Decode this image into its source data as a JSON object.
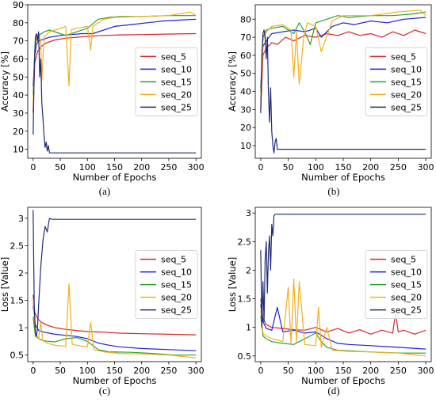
{
  "chart_data": [
    {
      "type": "line",
      "caption": "(a)",
      "xlabel": "Number of Epochs",
      "ylabel": "Accuracy [%]",
      "xlim": [
        -10,
        310
      ],
      "ylim": [
        5,
        90
      ],
      "xticks": [
        0,
        50,
        100,
        150,
        200,
        250,
        300
      ],
      "yticks": [
        10,
        20,
        30,
        40,
        50,
        60,
        70,
        80,
        90
      ],
      "legend": "center-right",
      "series": [
        {
          "name": "seq_5",
          "color": "#d62728",
          "x": [
            0,
            3,
            8,
            15,
            25,
            40,
            60,
            80,
            100,
            130,
            160,
            200,
            250,
            300
          ],
          "y": [
            30,
            58,
            64,
            67,
            69,
            70.5,
            71.5,
            72,
            72.5,
            73,
            73.3,
            73.5,
            73.8,
            74
          ]
        },
        {
          "name": "seq_10",
          "color": "#1f1fd6",
          "x": [
            0,
            3,
            6,
            10,
            20,
            30,
            50,
            70,
            90,
            110,
            130,
            150,
            180,
            210,
            240,
            270,
            300
          ],
          "y": [
            45,
            62,
            68,
            70,
            71,
            72,
            73,
            73.5,
            74,
            74,
            76,
            78,
            79,
            80,
            81,
            81.5,
            82
          ]
        },
        {
          "name": "seq_15",
          "color": "#2ca02c",
          "x": [
            0,
            3,
            6,
            10,
            20,
            30,
            50,
            60,
            80,
            100,
            120,
            140,
            160,
            200,
            250,
            300
          ],
          "y": [
            40,
            65,
            71,
            73,
            75,
            76,
            74,
            73,
            75,
            77,
            82,
            83,
            83.5,
            83.5,
            84,
            84
          ]
        },
        {
          "name": "seq_20",
          "color": "#f2b01e",
          "x": [
            0,
            3,
            6,
            10,
            14,
            16,
            20,
            30,
            50,
            60,
            66,
            70,
            80,
            100,
            106,
            110,
            130,
            150,
            200,
            250,
            290,
            300
          ],
          "y": [
            35,
            65,
            72,
            74,
            70,
            48,
            72,
            75,
            77,
            78,
            45,
            76,
            77,
            78,
            65,
            78,
            82,
            83,
            83.5,
            84,
            86,
            84
          ]
        },
        {
          "name": "seq_25",
          "color": "#1f2b7a",
          "x": [
            0,
            2,
            4,
            6,
            8,
            10,
            12,
            14,
            16,
            18,
            20,
            22,
            24,
            26,
            28,
            30,
            35,
            60,
            100,
            200,
            300
          ],
          "y": [
            18,
            55,
            72,
            74,
            70,
            75,
            50,
            60,
            35,
            27,
            18,
            11,
            14,
            9,
            12,
            8,
            8,
            8,
            8,
            8,
            8
          ]
        }
      ]
    },
    {
      "type": "line",
      "caption": "(b)",
      "xlabel": "Number of Epochs",
      "ylabel": "Accuracy [%]",
      "xlim": [
        -10,
        310
      ],
      "ylim": [
        3,
        88
      ],
      "xticks": [
        0,
        50,
        100,
        150,
        200,
        250,
        300
      ],
      "yticks": [
        10,
        20,
        30,
        40,
        50,
        60,
        70,
        80
      ],
      "legend": "center-right",
      "series": [
        {
          "name": "seq_5",
          "color": "#d62728",
          "x": [
            0,
            4,
            10,
            20,
            30,
            45,
            60,
            80,
            100,
            120,
            140,
            160,
            180,
            200,
            220,
            240,
            260,
            280,
            300
          ],
          "y": [
            30,
            60,
            64,
            67,
            66,
            70,
            68,
            71,
            70,
            72,
            71,
            73,
            71,
            72,
            70,
            73,
            71,
            74,
            72
          ]
        },
        {
          "name": "seq_10",
          "color": "#1f1fd6",
          "x": [
            0,
            4,
            10,
            20,
            40,
            60,
            80,
            100,
            110,
            130,
            150,
            170,
            200,
            230,
            260,
            300
          ],
          "y": [
            42,
            65,
            68,
            72,
            73,
            74,
            73,
            75,
            70,
            76,
            78,
            77,
            79,
            78,
            80,
            81
          ]
        },
        {
          "name": "seq_15",
          "color": "#2ca02c",
          "x": [
            0,
            4,
            10,
            20,
            40,
            60,
            70,
            80,
            90,
            100,
            120,
            140,
            160,
            200,
            240,
            280,
            300
          ],
          "y": [
            40,
            70,
            74,
            75,
            76,
            72,
            78,
            73,
            66,
            78,
            80,
            82,
            81,
            82,
            82,
            83,
            84
          ]
        },
        {
          "name": "seq_20",
          "color": "#f2b01e",
          "x": [
            0,
            4,
            10,
            20,
            40,
            55,
            60,
            65,
            70,
            78,
            85,
            100,
            110,
            130,
            150,
            200,
            250,
            290,
            300
          ],
          "y": [
            35,
            68,
            73,
            76,
            77,
            74,
            48,
            73,
            44,
            70,
            78,
            76,
            62,
            79,
            82,
            82,
            84,
            85,
            82
          ]
        },
        {
          "name": "seq_25",
          "color": "#1f2b7a",
          "x": [
            0,
            2,
            4,
            6,
            8,
            10,
            12,
            14,
            16,
            18,
            20,
            22,
            24,
            26,
            28,
            30,
            35,
            100,
            200,
            300
          ],
          "y": [
            28,
            60,
            72,
            74,
            70,
            58,
            70,
            40,
            23,
            42,
            18,
            10,
            6,
            12,
            14,
            8,
            8,
            8,
            8,
            8
          ]
        }
      ]
    },
    {
      "type": "line",
      "caption": "(c)",
      "xlabel": "Number of Epochs",
      "ylabel": "Loss [Value]",
      "xlim": [
        -10,
        310
      ],
      "ylim": [
        0.38,
        3.2
      ],
      "xticks": [
        0,
        50,
        100,
        150,
        200,
        250,
        300
      ],
      "yticks": [
        0.5,
        1.0,
        1.5,
        2.0,
        2.5,
        3.0
      ],
      "legend": "center-right",
      "series": [
        {
          "name": "seq_5",
          "color": "#d62728",
          "x": [
            0,
            3,
            8,
            15,
            25,
            40,
            60,
            80,
            100,
            130,
            160,
            200,
            250,
            300
          ],
          "y": [
            1.6,
            1.28,
            1.17,
            1.1,
            1.05,
            1.0,
            0.97,
            0.95,
            0.93,
            0.92,
            0.9,
            0.89,
            0.88,
            0.87
          ]
        },
        {
          "name": "seq_10",
          "color": "#1f1fd6",
          "x": [
            0,
            4,
            10,
            20,
            40,
            60,
            80,
            100,
            120,
            140,
            160,
            200,
            250,
            300
          ],
          "y": [
            1.4,
            1.05,
            0.95,
            0.92,
            0.88,
            0.86,
            0.84,
            0.8,
            0.72,
            0.68,
            0.65,
            0.62,
            0.6,
            0.58
          ]
        },
        {
          "name": "seq_15",
          "color": "#2ca02c",
          "x": [
            0,
            4,
            10,
            20,
            40,
            60,
            80,
            100,
            120,
            140,
            180,
            220,
            260,
            300
          ],
          "y": [
            1.2,
            0.85,
            0.8,
            0.76,
            0.74,
            0.8,
            0.82,
            0.75,
            0.6,
            0.56,
            0.55,
            0.53,
            0.5,
            0.5
          ]
        },
        {
          "name": "seq_20",
          "color": "#f2b01e",
          "x": [
            0,
            4,
            10,
            14,
            18,
            25,
            40,
            60,
            66,
            72,
            80,
            100,
            106,
            112,
            130,
            160,
            200,
            250,
            300
          ],
          "y": [
            1.5,
            0.9,
            0.8,
            1.1,
            0.76,
            0.72,
            0.68,
            0.66,
            1.8,
            0.7,
            0.68,
            0.65,
            1.1,
            0.6,
            0.56,
            0.53,
            0.52,
            0.5,
            0.45
          ]
        },
        {
          "name": "seq_25",
          "color": "#1f2b7a",
          "x": [
            0,
            2,
            4,
            6,
            8,
            10,
            14,
            18,
            22,
            26,
            30,
            35,
            100,
            200,
            300
          ],
          "y": [
            3.15,
            1.4,
            0.9,
            0.85,
            1.0,
            1.4,
            2.1,
            2.6,
            2.85,
            2.75,
            3.0,
            2.98,
            2.98,
            2.98,
            2.98
          ]
        }
      ]
    },
    {
      "type": "line",
      "caption": "(d)",
      "xlabel": "Number of Epochs",
      "ylabel": "Loss [Value]",
      "xlim": [
        -10,
        310
      ],
      "ylim": [
        0.4,
        3.1
      ],
      "xticks": [
        0,
        50,
        100,
        150,
        200,
        250,
        300
      ],
      "yticks": [
        0.5,
        1.0,
        1.5,
        2.0,
        2.5,
        3.0
      ],
      "legend": "center-right",
      "series": [
        {
          "name": "seq_5",
          "color": "#d62728",
          "x": [
            0,
            4,
            10,
            20,
            40,
            60,
            80,
            100,
            120,
            140,
            160,
            180,
            200,
            220,
            240,
            245,
            250,
            260,
            280,
            300
          ],
          "y": [
            1.5,
            1.15,
            1.05,
            1.0,
            0.98,
            0.96,
            0.95,
            1.0,
            0.92,
            0.98,
            0.9,
            0.96,
            0.88,
            0.95,
            0.9,
            1.25,
            0.92,
            0.95,
            0.88,
            0.95
          ]
        },
        {
          "name": "seq_10",
          "color": "#1f1fd6",
          "x": [
            0,
            4,
            10,
            20,
            30,
            40,
            60,
            80,
            100,
            120,
            140,
            160,
            200,
            250,
            300
          ],
          "y": [
            1.4,
            1.1,
            0.98,
            0.95,
            1.35,
            0.92,
            0.95,
            0.9,
            0.92,
            0.8,
            0.72,
            0.7,
            0.68,
            0.65,
            0.62
          ]
        },
        {
          "name": "seq_15",
          "color": "#2ca02c",
          "x": [
            0,
            4,
            10,
            20,
            40,
            60,
            80,
            100,
            110,
            120,
            140,
            180,
            220,
            260,
            300
          ],
          "y": [
            1.2,
            0.85,
            0.8,
            0.75,
            0.72,
            0.7,
            0.8,
            0.9,
            0.75,
            0.65,
            0.6,
            0.58,
            0.56,
            0.55,
            0.55
          ]
        },
        {
          "name": "seq_20",
          "color": "#f2b01e",
          "x": [
            0,
            4,
            10,
            20,
            40,
            50,
            55,
            60,
            65,
            70,
            80,
            100,
            105,
            110,
            120,
            130,
            160,
            200,
            250,
            300
          ],
          "y": [
            1.3,
            0.9,
            0.85,
            0.8,
            0.75,
            1.7,
            0.72,
            1.85,
            0.74,
            1.8,
            0.7,
            0.68,
            1.35,
            0.65,
            1.0,
            0.6,
            0.58,
            0.57,
            0.55,
            0.5
          ]
        },
        {
          "name": "seq_25",
          "color": "#1f2b7a",
          "x": [
            0,
            2,
            4,
            6,
            8,
            10,
            12,
            14,
            16,
            18,
            20,
            22,
            24,
            26,
            30,
            100,
            200,
            300
          ],
          "y": [
            2.35,
            1.0,
            1.8,
            1.1,
            2.2,
            2.5,
            1.6,
            2.3,
            2.6,
            2.0,
            2.8,
            2.6,
            2.95,
            2.98,
            2.98,
            2.98,
            2.98,
            2.98
          ]
        }
      ]
    }
  ]
}
